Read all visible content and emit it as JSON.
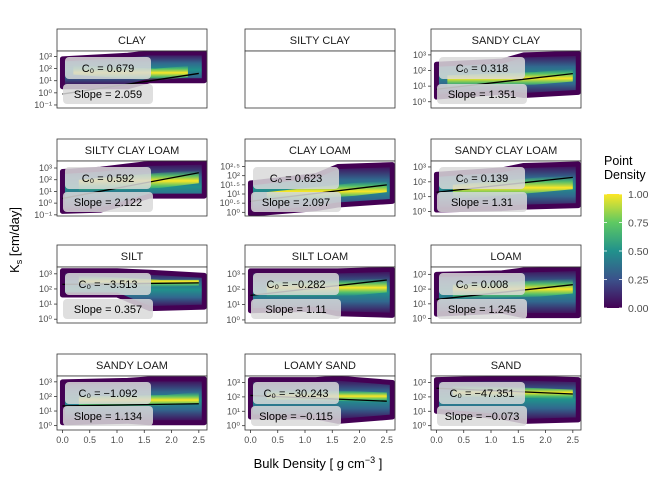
{
  "chart_data": {
    "type": "scatter",
    "subtype": "faceted density scatter with fitted regression line",
    "xlabel": "Bulk Density [ g cm⁻³ ]",
    "ylabel": "Ks [cm/day]",
    "x_ticks": [
      "0.0",
      "0.5",
      "1.0",
      "1.5",
      "2.0",
      "2.5"
    ],
    "x_range": [
      -0.1,
      2.65
    ],
    "y_scale": "log10",
    "legend": {
      "title_lines": [
        "Point",
        "Density"
      ],
      "ticks": [
        "1.00",
        "0.75",
        "0.50",
        "0.25",
        "0.00"
      ],
      "tick_values": [
        1.0,
        0.75,
        0.5,
        0.25,
        0.0
      ],
      "colors": [
        "#fde725",
        "#5ec962",
        "#21918c",
        "#3b528b",
        "#440154"
      ],
      "placement": "right"
    },
    "annotation_background": "#d9d9d9",
    "fit_line_color": "#000000",
    "facets": [
      {
        "name": "CLAY",
        "c0": "C₀ = 0.679",
        "slope": "Slope = 2.059",
        "y_ticks": [
          "10⁻¹",
          "10⁰",
          "10¹",
          "10²",
          "10³"
        ],
        "y_tick_log": [
          -1,
          0,
          1,
          2,
          3
        ],
        "y_range": [
          -1.25,
          3.45
        ],
        "band": [
          [
            0.0,
            0.5,
            2.8
          ],
          [
            1.2,
            0.5,
            3.1
          ],
          [
            1.6,
            1.0,
            3.3
          ],
          [
            2.6,
            1.0,
            3.3
          ]
        ],
        "core": [
          [
            0.2,
            1.5,
            2.3
          ],
          [
            1.7,
            1.0,
            2.0
          ],
          [
            2.3,
            1.3,
            2.2
          ]
        ],
        "fit": [
          [
            0.0,
            -0.1
          ],
          [
            2.5,
            1.6
          ]
        ],
        "has_data": true
      },
      {
        "name": "SILTY CLAY",
        "c0": "",
        "slope": "",
        "y_ticks": [],
        "y_tick_log": [],
        "y_range": [
          0,
          1
        ],
        "band": [],
        "core": [],
        "fit": [],
        "has_data": false
      },
      {
        "name": "SANDY CLAY",
        "c0": "C₀ = 0.318",
        "slope": "Slope = 1.351",
        "y_ticks": [
          "10⁰",
          "10¹",
          "10²",
          "10³"
        ],
        "y_tick_log": [
          0,
          1,
          2,
          3
        ],
        "y_range": [
          -0.4,
          3.25
        ],
        "band": [
          [
            0.0,
            0.3,
            2.4
          ],
          [
            1.2,
            0.6,
            2.6
          ],
          [
            1.6,
            0.4,
            3.0
          ],
          [
            2.6,
            0.6,
            3.1
          ]
        ],
        "core": [
          [
            0.2,
            0.9,
            1.7
          ],
          [
            1.8,
            1.1,
            1.9
          ],
          [
            2.5,
            1.3,
            2.1
          ]
        ],
        "fit": [
          [
            0.0,
            0.8
          ],
          [
            2.5,
            1.8
          ]
        ],
        "has_data": true
      },
      {
        "name": "SILTY CLAY LOAM",
        "c0": "C₀ = 0.592",
        "slope": "Slope = 2.122",
        "y_ticks": [
          "10⁻¹",
          "10⁰",
          "10¹",
          "10²",
          "10³"
        ],
        "y_tick_log": [
          -1,
          0,
          1,
          2,
          3
        ],
        "y_range": [
          -1.1,
          3.6
        ],
        "band": [
          [
            0.0,
            -0.7,
            2.7
          ],
          [
            0.7,
            -0.6,
            2.9
          ],
          [
            1.6,
            0.6,
            3.4
          ],
          [
            2.6,
            0.6,
            3.5
          ]
        ],
        "core": [
          [
            0.3,
            1.0,
            2.0
          ],
          [
            1.8,
            1.3,
            2.6
          ],
          [
            2.5,
            1.7,
            2.8
          ]
        ],
        "fit": [
          [
            0.0,
            0.4
          ],
          [
            2.5,
            2.6
          ]
        ],
        "has_data": true
      },
      {
        "name": "CLAY LOAM",
        "c0": "C₀ = 0.623",
        "slope": "Slope = 2.097",
        "y_ticks": [
          "10⁰",
          "10⁰·⁵",
          "10¹",
          "10¹·⁵",
          "10²",
          "10²·⁵"
        ],
        "y_tick_log": [
          0,
          0.5,
          1,
          1.5,
          2,
          2.5
        ],
        "y_range": [
          -0.2,
          2.8
        ],
        "band": [
          [
            0.0,
            -0.1,
            1.6
          ],
          [
            1.2,
            0.2,
            2.0
          ],
          [
            1.6,
            0.4,
            2.5
          ],
          [
            2.6,
            0.6,
            2.6
          ]
        ],
        "core": [
          [
            0.3,
            0.6,
            1.1
          ],
          [
            1.9,
            0.9,
            1.6
          ],
          [
            2.5,
            1.1,
            1.7
          ]
        ],
        "fit": [
          [
            0.0,
            0.6
          ],
          [
            2.5,
            1.5
          ]
        ],
        "has_data": true
      },
      {
        "name": "SANDY CLAY LOAM",
        "c0": "C₀ = 0.139",
        "slope": "Slope = 1.31",
        "y_ticks": [
          "10⁰",
          "10¹",
          "10²",
          "10³"
        ],
        "y_tick_log": [
          0,
          1,
          2,
          3
        ],
        "y_range": [
          -0.3,
          3.4
        ],
        "band": [
          [
            0.0,
            0.1,
            2.5
          ],
          [
            1.2,
            0.2,
            2.8
          ],
          [
            1.6,
            0.3,
            3.1
          ],
          [
            2.6,
            0.4,
            3.2
          ]
        ],
        "core": [
          [
            0.3,
            0.8,
            1.8
          ],
          [
            1.9,
            1.3,
            2.3
          ],
          [
            2.5,
            1.5,
            2.4
          ]
        ],
        "fit": [
          [
            0.0,
            1.3
          ],
          [
            2.5,
            2.3
          ]
        ],
        "has_data": true
      },
      {
        "name": "SILT",
        "c0": "C₀ = −3.513",
        "slope": "Slope = 0.357",
        "y_ticks": [
          "10⁰",
          "10¹",
          "10²",
          "10³"
        ],
        "y_tick_log": [
          0,
          1,
          2,
          3
        ],
        "y_range": [
          -0.25,
          3.45
        ],
        "band": [
          [
            0.0,
            1.6,
            3.2
          ],
          [
            1.0,
            1.6,
            3.2
          ],
          [
            1.6,
            0.7,
            3.1
          ],
          [
            2.6,
            0.8,
            2.9
          ]
        ],
        "core": [
          [
            0.3,
            2.3,
            2.9
          ],
          [
            1.8,
            2.1,
            2.6
          ],
          [
            2.5,
            2.2,
            2.6
          ]
        ],
        "fit": [
          [
            0.0,
            2.3
          ],
          [
            2.5,
            2.4
          ]
        ],
        "has_data": true
      },
      {
        "name": "SILT LOAM",
        "c0": "C₀ = −0.282",
        "slope": "Slope = 1.11",
        "y_ticks": [
          "10⁰",
          "10¹",
          "10²",
          "10³"
        ],
        "y_tick_log": [
          0,
          1,
          2,
          3
        ],
        "y_range": [
          -0.2,
          3.45
        ],
        "band": [
          [
            0.0,
            0.6,
            3.2
          ],
          [
            1.2,
            0.7,
            3.2
          ],
          [
            1.6,
            0.4,
            3.2
          ],
          [
            2.6,
            0.3,
            3.3
          ]
        ],
        "core": [
          [
            0.3,
            1.5,
            2.5
          ],
          [
            1.9,
            1.6,
            2.6
          ],
          [
            2.5,
            1.8,
            2.7
          ]
        ],
        "fit": [
          [
            0.0,
            1.6
          ],
          [
            2.5,
            2.6
          ]
        ],
        "has_data": true
      },
      {
        "name": "LOAM",
        "c0": "C₀ = 0.008",
        "slope": "Slope = 1.245",
        "y_ticks": [
          "10⁰",
          "10¹",
          "10²",
          "10³"
        ],
        "y_tick_log": [
          0,
          1,
          2,
          3
        ],
        "y_range": [
          -0.3,
          3.5
        ],
        "band": [
          [
            0.0,
            0.3,
            3.0
          ],
          [
            1.2,
            0.5,
            3.1
          ],
          [
            1.6,
            0.2,
            3.3
          ],
          [
            2.6,
            0.2,
            3.4
          ]
        ],
        "core": [
          [
            0.3,
            1.3,
            2.3
          ],
          [
            1.9,
            1.5,
            2.6
          ],
          [
            2.5,
            1.7,
            2.7
          ]
        ],
        "fit": [
          [
            0.0,
            1.3
          ],
          [
            2.5,
            2.3
          ]
        ],
        "has_data": true
      },
      {
        "name": "SANDY LOAM",
        "c0": "C₀ = −1.092",
        "slope": "Slope = 1.134",
        "y_ticks": [
          "10⁰",
          "10¹",
          "10²",
          "10³"
        ],
        "y_tick_log": [
          0,
          1,
          2,
          3
        ],
        "y_range": [
          -0.3,
          3.4
        ],
        "band": [
          [
            0.0,
            0.2,
            3.0
          ],
          [
            1.2,
            0.3,
            3.1
          ],
          [
            1.6,
            0.2,
            3.2
          ],
          [
            2.6,
            0.2,
            3.2
          ]
        ],
        "core": [
          [
            0.3,
            1.2,
            2.0
          ],
          [
            1.9,
            1.4,
            2.1
          ],
          [
            2.5,
            1.5,
            2.3
          ]
        ],
        "fit": [
          [
            0.0,
            1.35
          ],
          [
            2.5,
            1.5
          ]
        ],
        "has_data": true
      },
      {
        "name": "LOAMY SAND",
        "c0": "C₀ = −30.243",
        "slope": "Slope = −0.115",
        "y_ticks": [
          "10⁰",
          "10¹",
          "10²",
          "10³"
        ],
        "y_tick_log": [
          0,
          1,
          2,
          3
        ],
        "y_range": [
          -0.3,
          3.45
        ],
        "band": [
          [
            0.0,
            0.6,
            3.2
          ],
          [
            1.2,
            0.6,
            3.2
          ],
          [
            1.6,
            0.3,
            3.3
          ],
          [
            2.6,
            0.6,
            3.0
          ]
        ],
        "core": [
          [
            0.3,
            1.8,
            2.5
          ],
          [
            1.9,
            1.7,
            2.4
          ],
          [
            2.5,
            1.6,
            2.3
          ]
        ],
        "fit": [
          [
            0.0,
            2.1
          ],
          [
            2.5,
            1.7
          ]
        ],
        "has_data": true
      },
      {
        "name": "SAND",
        "c0": "C₀ = −47.351",
        "slope": "Slope = −0.073",
        "y_ticks": [
          "10⁰",
          "10¹",
          "10²",
          "10³"
        ],
        "y_tick_log": [
          0,
          1,
          2,
          3
        ],
        "y_range": [
          -0.3,
          3.45
        ],
        "band": [
          [
            0.0,
            1.0,
            3.2
          ],
          [
            1.2,
            0.6,
            3.3
          ],
          [
            1.6,
            0.3,
            3.3
          ],
          [
            2.6,
            0.4,
            3.2
          ]
        ],
        "core": [
          [
            0.3,
            2.0,
            2.8
          ],
          [
            1.9,
            1.9,
            2.6
          ],
          [
            2.5,
            1.8,
            2.5
          ]
        ],
        "fit": [
          [
            0.0,
            2.6
          ],
          [
            2.5,
            2.2
          ]
        ],
        "has_data": true
      }
    ]
  }
}
